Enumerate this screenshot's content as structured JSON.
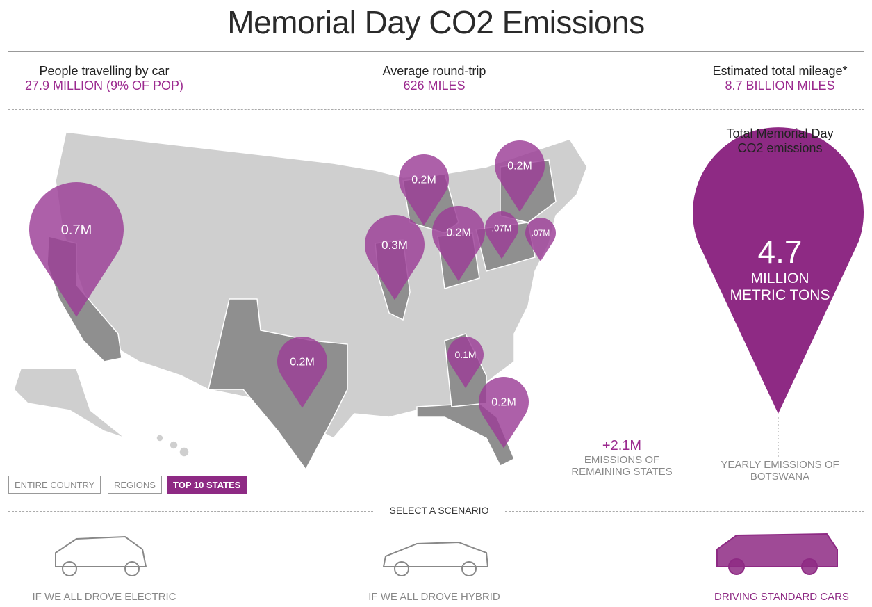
{
  "header": {
    "title": "Memorial Day CO2 Emissions"
  },
  "stats": [
    {
      "label": "People travelling by car",
      "value": "27.9 MILLION (9% OF POP)"
    },
    {
      "label": "Average round-trip",
      "value": "626 MILES"
    },
    {
      "label": "Estimated total mileage*",
      "value": "8.7 BILLION MILES"
    }
  ],
  "map": {
    "pins": [
      {
        "label": "0.7M"
      },
      {
        "label": "0.2M"
      },
      {
        "label": "0.2M"
      },
      {
        "label": "0.3M"
      },
      {
        "label": "0.2M"
      },
      {
        "label": ".07M"
      },
      {
        "label": ".07M"
      },
      {
        "label": "0.2M"
      },
      {
        "label": "0.1M"
      },
      {
        "label": "0.2M"
      }
    ]
  },
  "total": {
    "label_lines": [
      "Total Memorial Day",
      "CO2 emissions"
    ],
    "value": "4.7",
    "unit_lines": [
      "MILLION",
      "METRIC TONS"
    ],
    "comparison_lines": [
      "YEARLY EMISSIONS OF",
      "BOTSWANA"
    ]
  },
  "remaining": {
    "value": "+2.1M",
    "lines": [
      "EMISSIONS OF",
      "REMAINING STATES"
    ]
  },
  "view_buttons": [
    {
      "label": "ENTIRE COUNTRY",
      "active": false
    },
    {
      "label": "REGIONS",
      "active": false
    },
    {
      "label": "TOP 10 STATES",
      "active": true
    }
  ],
  "scenario": {
    "heading": "SELECT A SCENARIO",
    "options": [
      {
        "label": "IF WE ALL DROVE ELECTRIC",
        "active": false
      },
      {
        "label": "IF WE ALL DROVE HYBRID",
        "active": false
      },
      {
        "label": "DRIVING STANDARD CARS",
        "active": true
      }
    ]
  }
}
